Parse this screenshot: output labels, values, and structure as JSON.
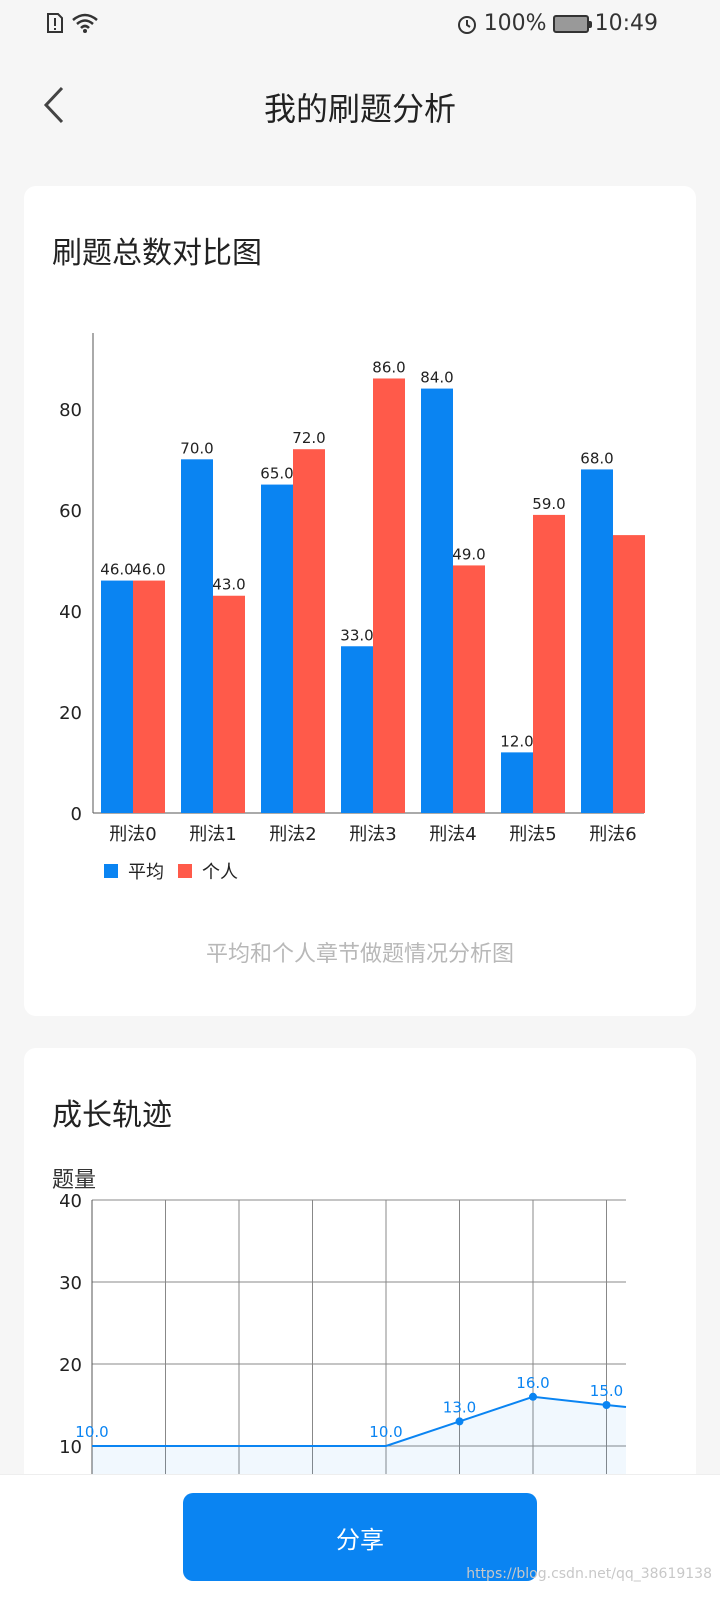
{
  "status": {
    "battery": "100%",
    "time": "10:49"
  },
  "nav": {
    "title": "我的刷题分析"
  },
  "card1": {
    "title": "刷题总数对比图",
    "caption": "平均和个人章节做题情况分析图"
  },
  "card2": {
    "title": "成长轨迹",
    "ylabel": "题量"
  },
  "chart_data": [
    {
      "type": "bar",
      "categories": [
        "刑法0",
        "刑法1",
        "刑法2",
        "刑法3",
        "刑法4",
        "刑法5",
        "刑法6"
      ],
      "series": [
        {
          "name": "平均",
          "color": "#0a84f2",
          "values": [
            46,
            70,
            65,
            33,
            84,
            12,
            68
          ]
        },
        {
          "name": "个人",
          "color": "#ff5a4a",
          "values": [
            46,
            43,
            72,
            86,
            49,
            59,
            55
          ]
        }
      ],
      "value_labels": [
        [
          "46.0",
          "70.0",
          "65.0",
          "33.0",
          "84.0",
          "12.0",
          "68.0"
        ],
        [
          "46.0",
          "43.0",
          "72.0",
          "86.0",
          "49.0",
          "59.0",
          null
        ]
      ],
      "ylim": [
        0,
        95
      ],
      "yticks": [
        0,
        20,
        40,
        60,
        80
      ],
      "legend": "bottom-left"
    },
    {
      "type": "line",
      "color": "#0a84f2",
      "ylim": [
        0,
        40
      ],
      "yticks": [
        10,
        20,
        30,
        40
      ],
      "ytick_labels": [
        "10",
        "20",
        "30",
        "40"
      ],
      "x": [
        0,
        1,
        2,
        3,
        4,
        5,
        6,
        7
      ],
      "values": [
        10,
        10,
        10,
        10,
        10,
        13,
        16,
        15
      ],
      "point_labels": [
        "10.0",
        null,
        null,
        null,
        "10.0",
        "13.0",
        "16.0",
        "15.0"
      ]
    }
  ],
  "share_button": "分享",
  "watermark": "https://blog.csdn.net/qq_38619138"
}
